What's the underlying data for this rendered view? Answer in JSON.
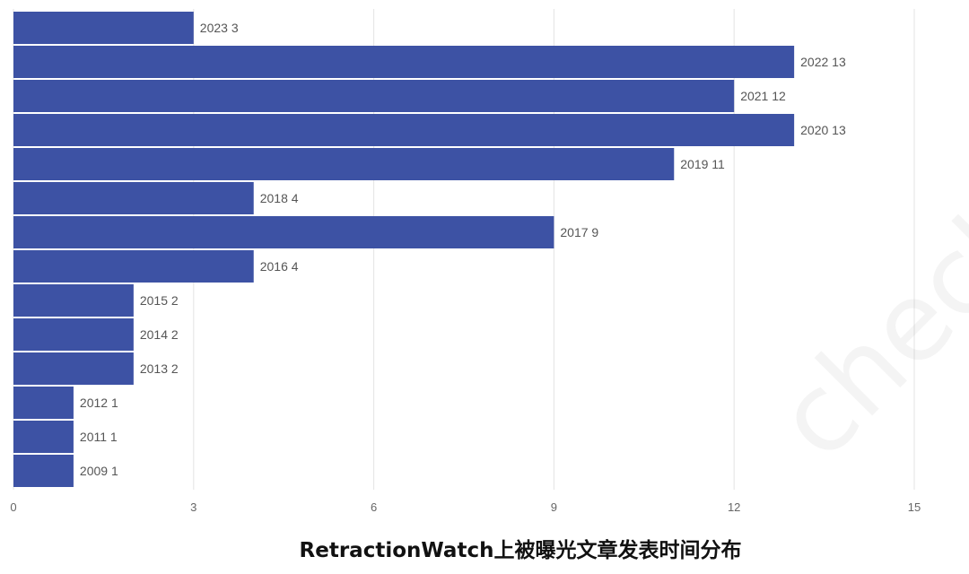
{
  "chart_data": {
    "type": "bar",
    "orientation": "horizontal",
    "title": "RetractionWatch上被曝光文章发表时间分布",
    "categories": [
      "2023",
      "2022",
      "2021",
      "2020",
      "2019",
      "2018",
      "2017",
      "2016",
      "2015",
      "2014",
      "2013",
      "2012",
      "2011",
      "2009"
    ],
    "values": [
      3,
      13,
      12,
      13,
      11,
      4,
      9,
      4,
      2,
      2,
      2,
      1,
      1,
      1
    ],
    "xlabel": "",
    "ylabel": "",
    "xlim": [
      0,
      15
    ],
    "xticks": [
      0,
      3,
      6,
      9,
      12,
      15
    ],
    "grid": true,
    "bar_color": "#3d52a4",
    "data_labels": [
      "2023 3",
      "2022 13",
      "2021 12",
      "2020 13",
      "2019 11",
      "2018 4",
      "2017 9",
      "2016 4",
      "2015 2",
      "2014 2",
      "2013 2",
      "2012 1",
      "2011 1",
      "2009 1"
    ]
  },
  "watermark": "check"
}
